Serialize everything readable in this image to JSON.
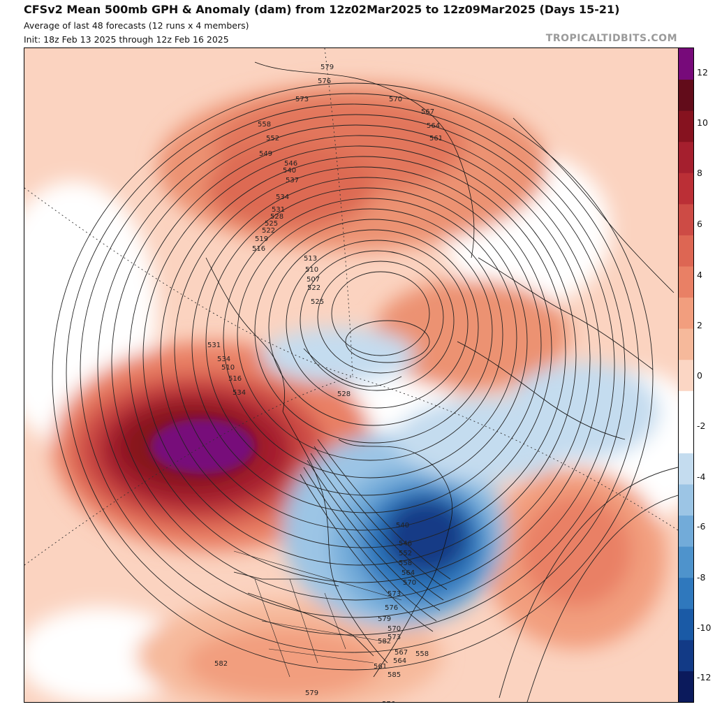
{
  "header": {
    "title": "CFSv2 Mean 500mb GPH & Anomaly (dam) from 12z02Mar2025 to 12z09Mar2025 (Days 15-21)",
    "subtitle": "Average of last 48 forecasts (12 runs x 4 members)",
    "init": "Init: 18z Feb 13 2025 through 12z Feb 16 2025",
    "brand": "TROPICALTIDBITS.COM"
  },
  "colorbar": {
    "labels": [
      "12",
      "10",
      "8",
      "6",
      "4",
      "2",
      "0",
      "-2",
      "-4",
      "-6",
      "-8",
      "-10",
      "-12"
    ],
    "colors": [
      "#0b1a5c",
      "#123a86",
      "#1a5aa6",
      "#2f78bd",
      "#4e93cc",
      "#72abd9",
      "#9cc5e5",
      "#c4dcef",
      "#ffffff",
      "#ffffff",
      "#fbd6c4",
      "#f6b99b",
      "#f29e7e",
      "#e98065",
      "#dd6653",
      "#cd4b45",
      "#bb2f36",
      "#a51f2e",
      "#86121f",
      "#620c1a",
      "#770a7a"
    ]
  },
  "contours": {
    "labels": [
      "579",
      "576",
      "573",
      "570",
      "567",
      "564",
      "561",
      "558",
      "552",
      "549",
      "546",
      "540",
      "537",
      "534",
      "531",
      "528",
      "525",
      "522",
      "519",
      "516",
      "513",
      "510",
      "507",
      "522",
      "525",
      "528",
      "531",
      "534",
      "510",
      "516",
      "534",
      "540",
      "546",
      "552",
      "558",
      "564",
      "570",
      "573",
      "576",
      "579",
      "582",
      "582",
      "585",
      "579",
      "576",
      "573",
      "570",
      "567",
      "564",
      "561",
      "558"
    ]
  },
  "map": {
    "description_colors": {
      "ocean_bg": "#fbd3c0",
      "coast": "#111111"
    }
  }
}
